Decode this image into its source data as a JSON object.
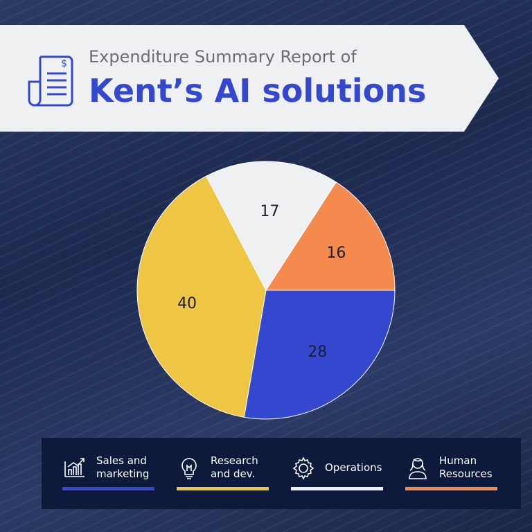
{
  "header": {
    "subtitle": "Expenditure Summary Report of",
    "title": "Kent’s AI solutions",
    "icon": "invoice-dollar-icon"
  },
  "chart_data": {
    "type": "pie",
    "start_angle_deg": 0,
    "direction": "clockwise",
    "slices": [
      {
        "name": "Sales and\nmarketing",
        "value": 28,
        "label": "28",
        "color": "#3348cf",
        "icon": "bar-chart-growth-icon"
      },
      {
        "name": "Research\nand dev.",
        "value": 40,
        "label": "40",
        "color": "#eec644",
        "icon": "lightbulb-icon"
      },
      {
        "name": "Operations",
        "value": 17,
        "label": "17",
        "color": "#eff0f2",
        "icon": "gear-icon"
      },
      {
        "name": "Human\nResources",
        "value": 16,
        "label": "16",
        "color": "#f48a4e",
        "icon": "person-icon"
      }
    ],
    "legend_position": "bottom"
  }
}
